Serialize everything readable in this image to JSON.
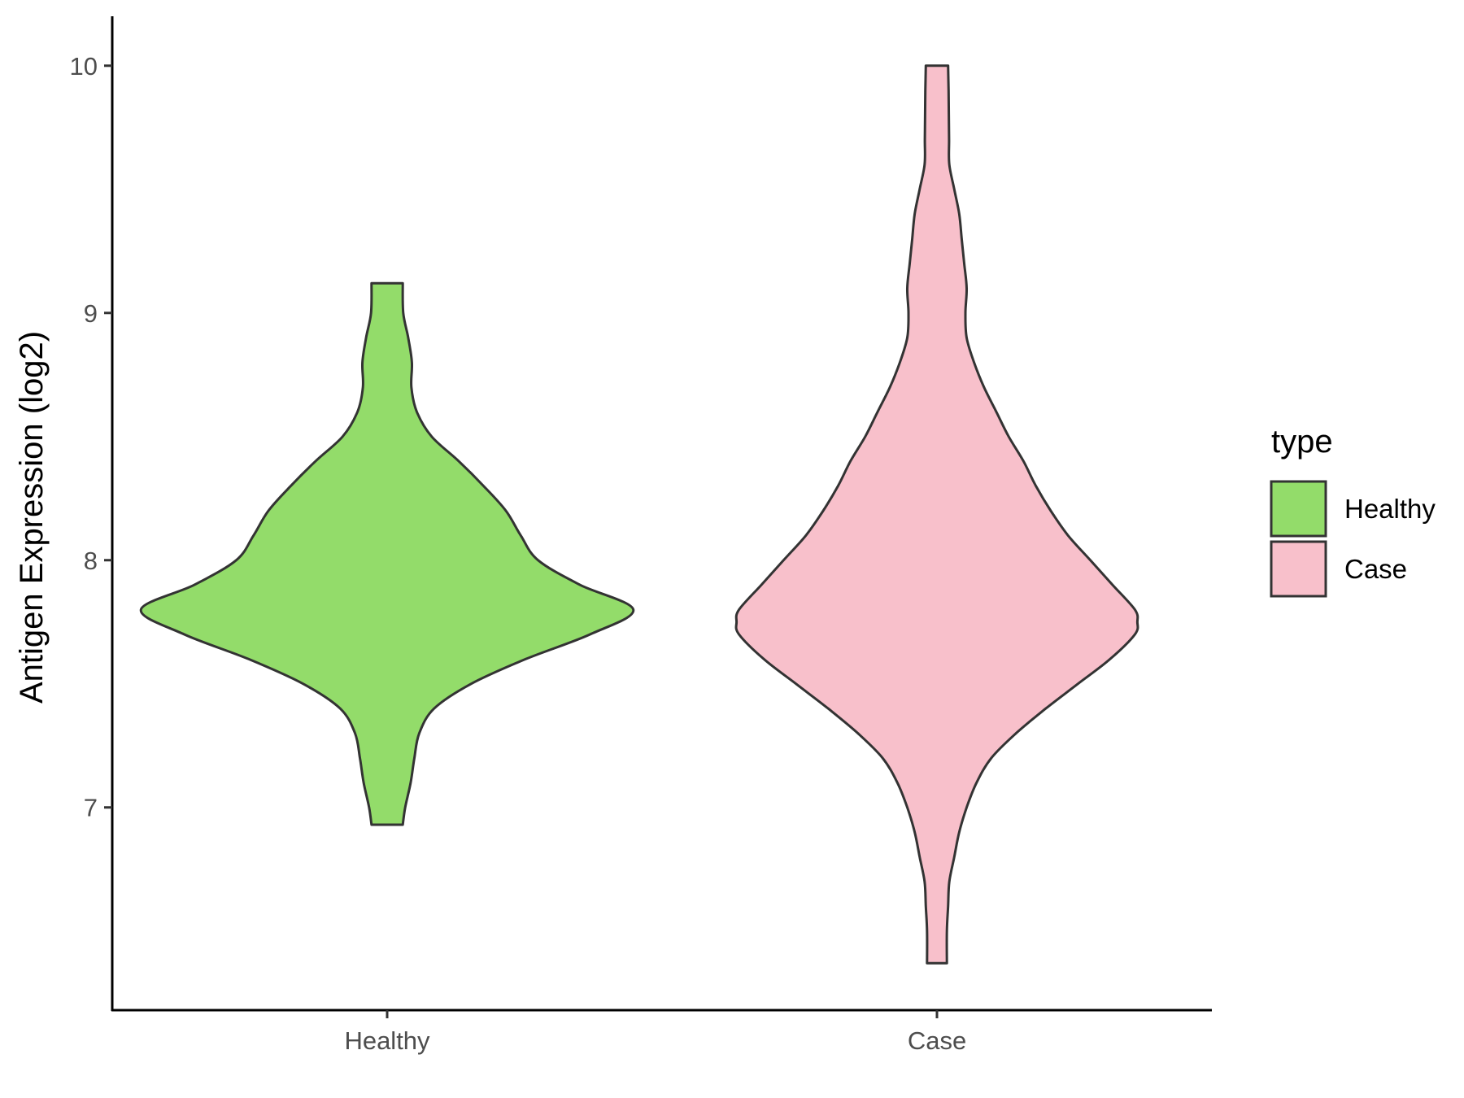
{
  "chart_data": {
    "type": "violin",
    "title": "",
    "xlabel": "",
    "ylabel": "Antigen Expression (log2)",
    "ylim": [
      6.18,
      10.2
    ],
    "yticks": [
      7,
      8,
      9,
      10
    ],
    "grid": false,
    "categories": [
      "Healthy",
      "Case"
    ],
    "legend": {
      "title": "type",
      "position": "right",
      "entries": [
        "Healthy",
        "Case"
      ]
    },
    "series": [
      {
        "name": "Healthy",
        "color": "#93dc6a",
        "min": 6.93,
        "max": 9.12,
        "profile": [
          [
            9.12,
            0.063
          ],
          [
            9.0,
            0.065
          ],
          [
            8.9,
            0.085
          ],
          [
            8.8,
            0.1
          ],
          [
            8.7,
            0.098
          ],
          [
            8.6,
            0.12
          ],
          [
            8.5,
            0.18
          ],
          [
            8.4,
            0.29
          ],
          [
            8.3,
            0.39
          ],
          [
            8.2,
            0.48
          ],
          [
            8.1,
            0.54
          ],
          [
            8.0,
            0.61
          ],
          [
            7.9,
            0.78
          ],
          [
            7.8,
            0.995
          ],
          [
            7.7,
            0.82
          ],
          [
            7.6,
            0.56
          ],
          [
            7.5,
            0.34
          ],
          [
            7.4,
            0.19
          ],
          [
            7.3,
            0.13
          ],
          [
            7.2,
            0.11
          ],
          [
            7.1,
            0.095
          ],
          [
            7.0,
            0.073
          ],
          [
            6.93,
            0.063
          ]
        ]
      },
      {
        "name": "Case",
        "color": "#f8c0cb",
        "min": 6.37,
        "max": 10.0,
        "profile": [
          [
            10.0,
            0.045
          ],
          [
            9.9,
            0.047
          ],
          [
            9.8,
            0.048
          ],
          [
            9.7,
            0.049
          ],
          [
            9.6,
            0.05
          ],
          [
            9.5,
            0.07
          ],
          [
            9.4,
            0.09
          ],
          [
            9.3,
            0.1
          ],
          [
            9.2,
            0.11
          ],
          [
            9.1,
            0.12
          ],
          [
            9.0,
            0.115
          ],
          [
            8.9,
            0.12
          ],
          [
            8.8,
            0.15
          ],
          [
            8.7,
            0.19
          ],
          [
            8.6,
            0.24
          ],
          [
            8.5,
            0.29
          ],
          [
            8.4,
            0.35
          ],
          [
            8.3,
            0.4
          ],
          [
            8.2,
            0.46
          ],
          [
            8.1,
            0.53
          ],
          [
            8.0,
            0.62
          ],
          [
            7.9,
            0.71
          ],
          [
            7.8,
            0.8
          ],
          [
            7.75,
            0.81
          ],
          [
            7.7,
            0.8
          ],
          [
            7.6,
            0.7
          ],
          [
            7.5,
            0.57
          ],
          [
            7.4,
            0.44
          ],
          [
            7.3,
            0.32
          ],
          [
            7.2,
            0.22
          ],
          [
            7.1,
            0.16
          ],
          [
            7.0,
            0.12
          ],
          [
            6.9,
            0.09
          ],
          [
            6.8,
            0.07
          ],
          [
            6.7,
            0.05
          ],
          [
            6.6,
            0.045
          ],
          [
            6.5,
            0.04
          ],
          [
            6.37,
            0.04
          ]
        ]
      }
    ]
  }
}
